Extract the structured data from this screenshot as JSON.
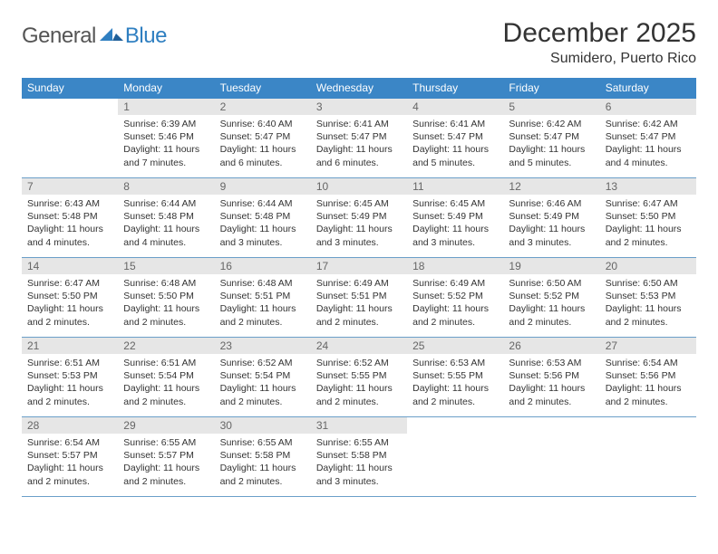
{
  "brand": {
    "part1": "General",
    "part2": "Blue"
  },
  "title": "December 2025",
  "location": "Sumidero, Puerto Rico",
  "day_headers": [
    "Sunday",
    "Monday",
    "Tuesday",
    "Wednesday",
    "Thursday",
    "Friday",
    "Saturday"
  ],
  "colors": {
    "header_bg": "#3b86c6",
    "week_border": "#6b9fc9",
    "daynum_bg": "#e6e6e6",
    "brand_blue": "#2f7fc1"
  },
  "days": [
    {
      "n": 1,
      "sunrise": "6:39 AM",
      "sunset": "5:46 PM",
      "daylight": "11 hours and 7 minutes."
    },
    {
      "n": 2,
      "sunrise": "6:40 AM",
      "sunset": "5:47 PM",
      "daylight": "11 hours and 6 minutes."
    },
    {
      "n": 3,
      "sunrise": "6:41 AM",
      "sunset": "5:47 PM",
      "daylight": "11 hours and 6 minutes."
    },
    {
      "n": 4,
      "sunrise": "6:41 AM",
      "sunset": "5:47 PM",
      "daylight": "11 hours and 5 minutes."
    },
    {
      "n": 5,
      "sunrise": "6:42 AM",
      "sunset": "5:47 PM",
      "daylight": "11 hours and 5 minutes."
    },
    {
      "n": 6,
      "sunrise": "6:42 AM",
      "sunset": "5:47 PM",
      "daylight": "11 hours and 4 minutes."
    },
    {
      "n": 7,
      "sunrise": "6:43 AM",
      "sunset": "5:48 PM",
      "daylight": "11 hours and 4 minutes."
    },
    {
      "n": 8,
      "sunrise": "6:44 AM",
      "sunset": "5:48 PM",
      "daylight": "11 hours and 4 minutes."
    },
    {
      "n": 9,
      "sunrise": "6:44 AM",
      "sunset": "5:48 PM",
      "daylight": "11 hours and 3 minutes."
    },
    {
      "n": 10,
      "sunrise": "6:45 AM",
      "sunset": "5:49 PM",
      "daylight": "11 hours and 3 minutes."
    },
    {
      "n": 11,
      "sunrise": "6:45 AM",
      "sunset": "5:49 PM",
      "daylight": "11 hours and 3 minutes."
    },
    {
      "n": 12,
      "sunrise": "6:46 AM",
      "sunset": "5:49 PM",
      "daylight": "11 hours and 3 minutes."
    },
    {
      "n": 13,
      "sunrise": "6:47 AM",
      "sunset": "5:50 PM",
      "daylight": "11 hours and 2 minutes."
    },
    {
      "n": 14,
      "sunrise": "6:47 AM",
      "sunset": "5:50 PM",
      "daylight": "11 hours and 2 minutes."
    },
    {
      "n": 15,
      "sunrise": "6:48 AM",
      "sunset": "5:50 PM",
      "daylight": "11 hours and 2 minutes."
    },
    {
      "n": 16,
      "sunrise": "6:48 AM",
      "sunset": "5:51 PM",
      "daylight": "11 hours and 2 minutes."
    },
    {
      "n": 17,
      "sunrise": "6:49 AM",
      "sunset": "5:51 PM",
      "daylight": "11 hours and 2 minutes."
    },
    {
      "n": 18,
      "sunrise": "6:49 AM",
      "sunset": "5:52 PM",
      "daylight": "11 hours and 2 minutes."
    },
    {
      "n": 19,
      "sunrise": "6:50 AM",
      "sunset": "5:52 PM",
      "daylight": "11 hours and 2 minutes."
    },
    {
      "n": 20,
      "sunrise": "6:50 AM",
      "sunset": "5:53 PM",
      "daylight": "11 hours and 2 minutes."
    },
    {
      "n": 21,
      "sunrise": "6:51 AM",
      "sunset": "5:53 PM",
      "daylight": "11 hours and 2 minutes."
    },
    {
      "n": 22,
      "sunrise": "6:51 AM",
      "sunset": "5:54 PM",
      "daylight": "11 hours and 2 minutes."
    },
    {
      "n": 23,
      "sunrise": "6:52 AM",
      "sunset": "5:54 PM",
      "daylight": "11 hours and 2 minutes."
    },
    {
      "n": 24,
      "sunrise": "6:52 AM",
      "sunset": "5:55 PM",
      "daylight": "11 hours and 2 minutes."
    },
    {
      "n": 25,
      "sunrise": "6:53 AM",
      "sunset": "5:55 PM",
      "daylight": "11 hours and 2 minutes."
    },
    {
      "n": 26,
      "sunrise": "6:53 AM",
      "sunset": "5:56 PM",
      "daylight": "11 hours and 2 minutes."
    },
    {
      "n": 27,
      "sunrise": "6:54 AM",
      "sunset": "5:56 PM",
      "daylight": "11 hours and 2 minutes."
    },
    {
      "n": 28,
      "sunrise": "6:54 AM",
      "sunset": "5:57 PM",
      "daylight": "11 hours and 2 minutes."
    },
    {
      "n": 29,
      "sunrise": "6:55 AM",
      "sunset": "5:57 PM",
      "daylight": "11 hours and 2 minutes."
    },
    {
      "n": 30,
      "sunrise": "6:55 AM",
      "sunset": "5:58 PM",
      "daylight": "11 hours and 2 minutes."
    },
    {
      "n": 31,
      "sunrise": "6:55 AM",
      "sunset": "5:58 PM",
      "daylight": "11 hours and 3 minutes."
    }
  ],
  "labels": {
    "sunrise_prefix": "Sunrise: ",
    "sunset_prefix": "Sunset: ",
    "daylight_prefix": "Daylight: "
  },
  "first_day_column": 1
}
